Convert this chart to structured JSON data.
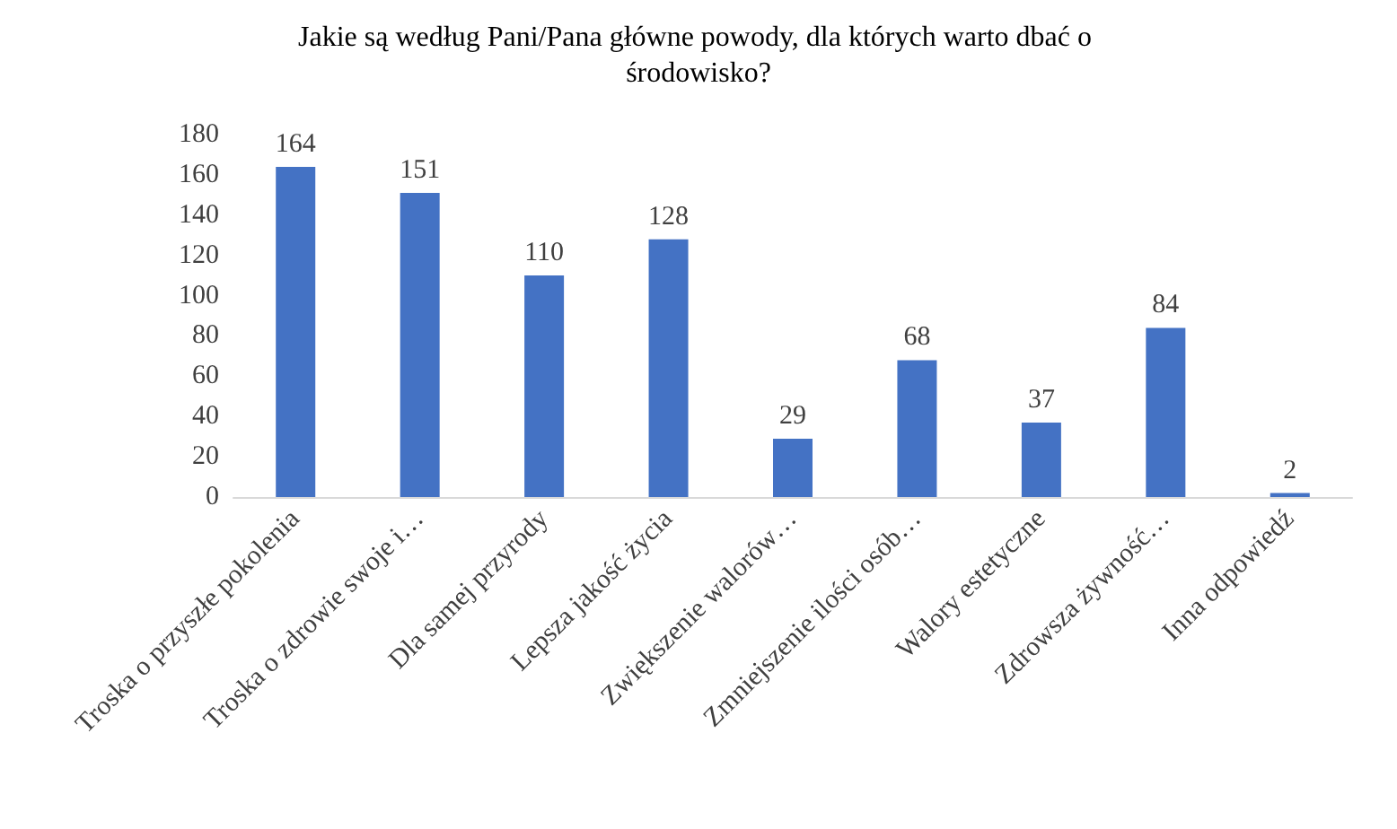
{
  "chart_data": {
    "type": "bar",
    "title": "Jakie są według Pani/Pana główne powody, dla których warto dbać o środowisko?",
    "categories": [
      "Troska o przyszłe pokolenia",
      "Troska o zdrowie swoje i…",
      "Dla samej przyrody",
      "Lepsza jakość życia",
      "Zwiększenie walorów…",
      "Zmniejszenie ilości osób…",
      "Walory estetyczne",
      "Zdrowsza żywność…",
      "Inna odpowiedź"
    ],
    "values": [
      164,
      151,
      110,
      128,
      29,
      68,
      37,
      84,
      2
    ],
    "color": "#4472c4",
    "ylim": [
      0,
      180
    ],
    "yticks": [
      0,
      20,
      40,
      60,
      80,
      100,
      120,
      140,
      160,
      180
    ],
    "grid": false,
    "data_labels": true
  }
}
